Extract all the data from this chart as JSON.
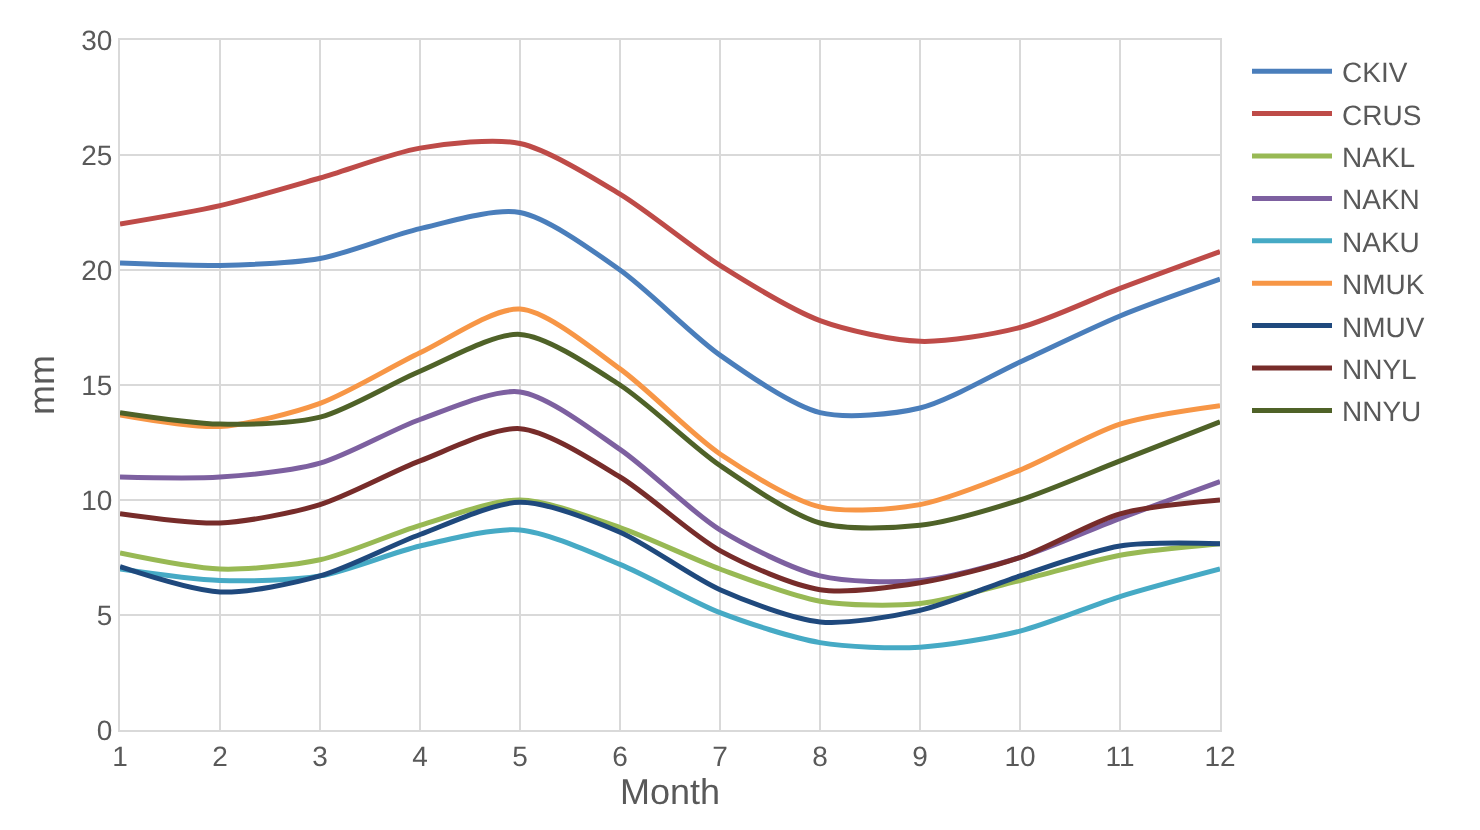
{
  "chart_data": {
    "type": "line",
    "xlabel": "Month",
    "ylabel": "mm",
    "x": [
      1,
      2,
      3,
      4,
      5,
      6,
      7,
      8,
      9,
      10,
      11,
      12
    ],
    "xlim": [
      1,
      12
    ],
    "xticks": [
      1,
      2,
      3,
      4,
      5,
      6,
      7,
      8,
      9,
      10,
      11,
      12
    ],
    "ylim": [
      0,
      30
    ],
    "yticks": [
      0,
      5,
      10,
      15,
      20,
      25,
      30
    ],
    "grid": true,
    "legend": "right",
    "marker": "none",
    "line_style": "solid",
    "series": [
      {
        "name": "CKIV",
        "color": "#4a7ebb",
        "values": [
          20.3,
          20.2,
          20.5,
          21.8,
          22.5,
          20.0,
          16.3,
          13.8,
          14.0,
          16.0,
          18.0,
          19.6
        ]
      },
      {
        "name": "CRUS",
        "color": "#be4b48",
        "values": [
          22.0,
          22.8,
          24.0,
          25.3,
          25.5,
          23.3,
          20.2,
          17.8,
          16.9,
          17.5,
          19.2,
          20.8
        ]
      },
      {
        "name": "NAKL",
        "color": "#98b954",
        "values": [
          7.7,
          7.0,
          7.4,
          8.9,
          10.0,
          8.8,
          7.0,
          5.6,
          5.5,
          6.5,
          7.6,
          8.1
        ]
      },
      {
        "name": "NAKN",
        "color": "#7d60a0",
        "values": [
          11.0,
          11.0,
          11.6,
          13.5,
          14.7,
          12.2,
          8.7,
          6.7,
          6.5,
          7.5,
          9.2,
          10.8
        ]
      },
      {
        "name": "NAKU",
        "color": "#46aac5",
        "values": [
          7.0,
          6.5,
          6.7,
          8.0,
          8.7,
          7.2,
          5.1,
          3.8,
          3.6,
          4.3,
          5.8,
          7.0
        ]
      },
      {
        "name": "NMUK",
        "color": "#f79646",
        "values": [
          13.7,
          13.2,
          14.2,
          16.4,
          18.3,
          15.7,
          12.0,
          9.7,
          9.8,
          11.3,
          13.3,
          14.1
        ]
      },
      {
        "name": "NMUV",
        "color": "#1f497d",
        "values": [
          7.1,
          6.0,
          6.7,
          8.5,
          9.9,
          8.6,
          6.1,
          4.7,
          5.2,
          6.7,
          8.0,
          8.1
        ]
      },
      {
        "name": "NNYL",
        "color": "#772c2a",
        "values": [
          9.4,
          9.0,
          9.8,
          11.7,
          13.1,
          11.0,
          7.8,
          6.1,
          6.4,
          7.5,
          9.4,
          10.0
        ]
      },
      {
        "name": "NNYU",
        "color": "#4f6228",
        "values": [
          13.8,
          13.3,
          13.6,
          15.6,
          17.2,
          15.0,
          11.5,
          9.0,
          8.9,
          10.0,
          11.7,
          13.4
        ]
      }
    ]
  }
}
